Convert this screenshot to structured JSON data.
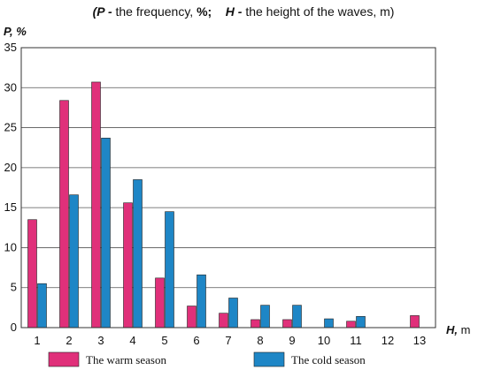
{
  "chart_data": {
    "type": "bar",
    "title_parts": [
      {
        "text": "(",
        "bold": true,
        "italic": true
      },
      {
        "text": "P -",
        "bold": true,
        "italic": true
      },
      {
        "text": " the frequency, ",
        "bold": false,
        "italic": false
      },
      {
        "text": "%;",
        "bold": true,
        "italic": false
      },
      {
        "text": "    ",
        "bold": false,
        "italic": false
      },
      {
        "text": "H -",
        "bold": true,
        "italic": true
      },
      {
        "text": " the height of the waves, m)",
        "bold": false,
        "italic": false
      }
    ],
    "ylabel": "P, %",
    "xlabel": "H, m",
    "xlabel_main": "H,",
    "xlabel_unit": " m",
    "categories": [
      "1",
      "2",
      "3",
      "4",
      "5",
      "6",
      "7",
      "8",
      "9",
      "10",
      "11",
      "12",
      "13"
    ],
    "ylim": [
      0,
      35
    ],
    "yticks": [
      0,
      5,
      10,
      15,
      20,
      25,
      30,
      35
    ],
    "grid": true,
    "legend_position": "bottom",
    "series": [
      {
        "name": "The warm season",
        "color": "#e0307a",
        "values": [
          13.5,
          28.4,
          30.7,
          15.6,
          6.2,
          2.7,
          1.8,
          1.0,
          1.0,
          0,
          0.8,
          0,
          1.5
        ]
      },
      {
        "name": "The cold season",
        "color": "#1e86c6",
        "values": [
          5.5,
          16.6,
          23.7,
          18.5,
          14.5,
          6.6,
          3.7,
          2.8,
          2.8,
          1.1,
          1.4,
          0,
          0
        ]
      }
    ]
  }
}
